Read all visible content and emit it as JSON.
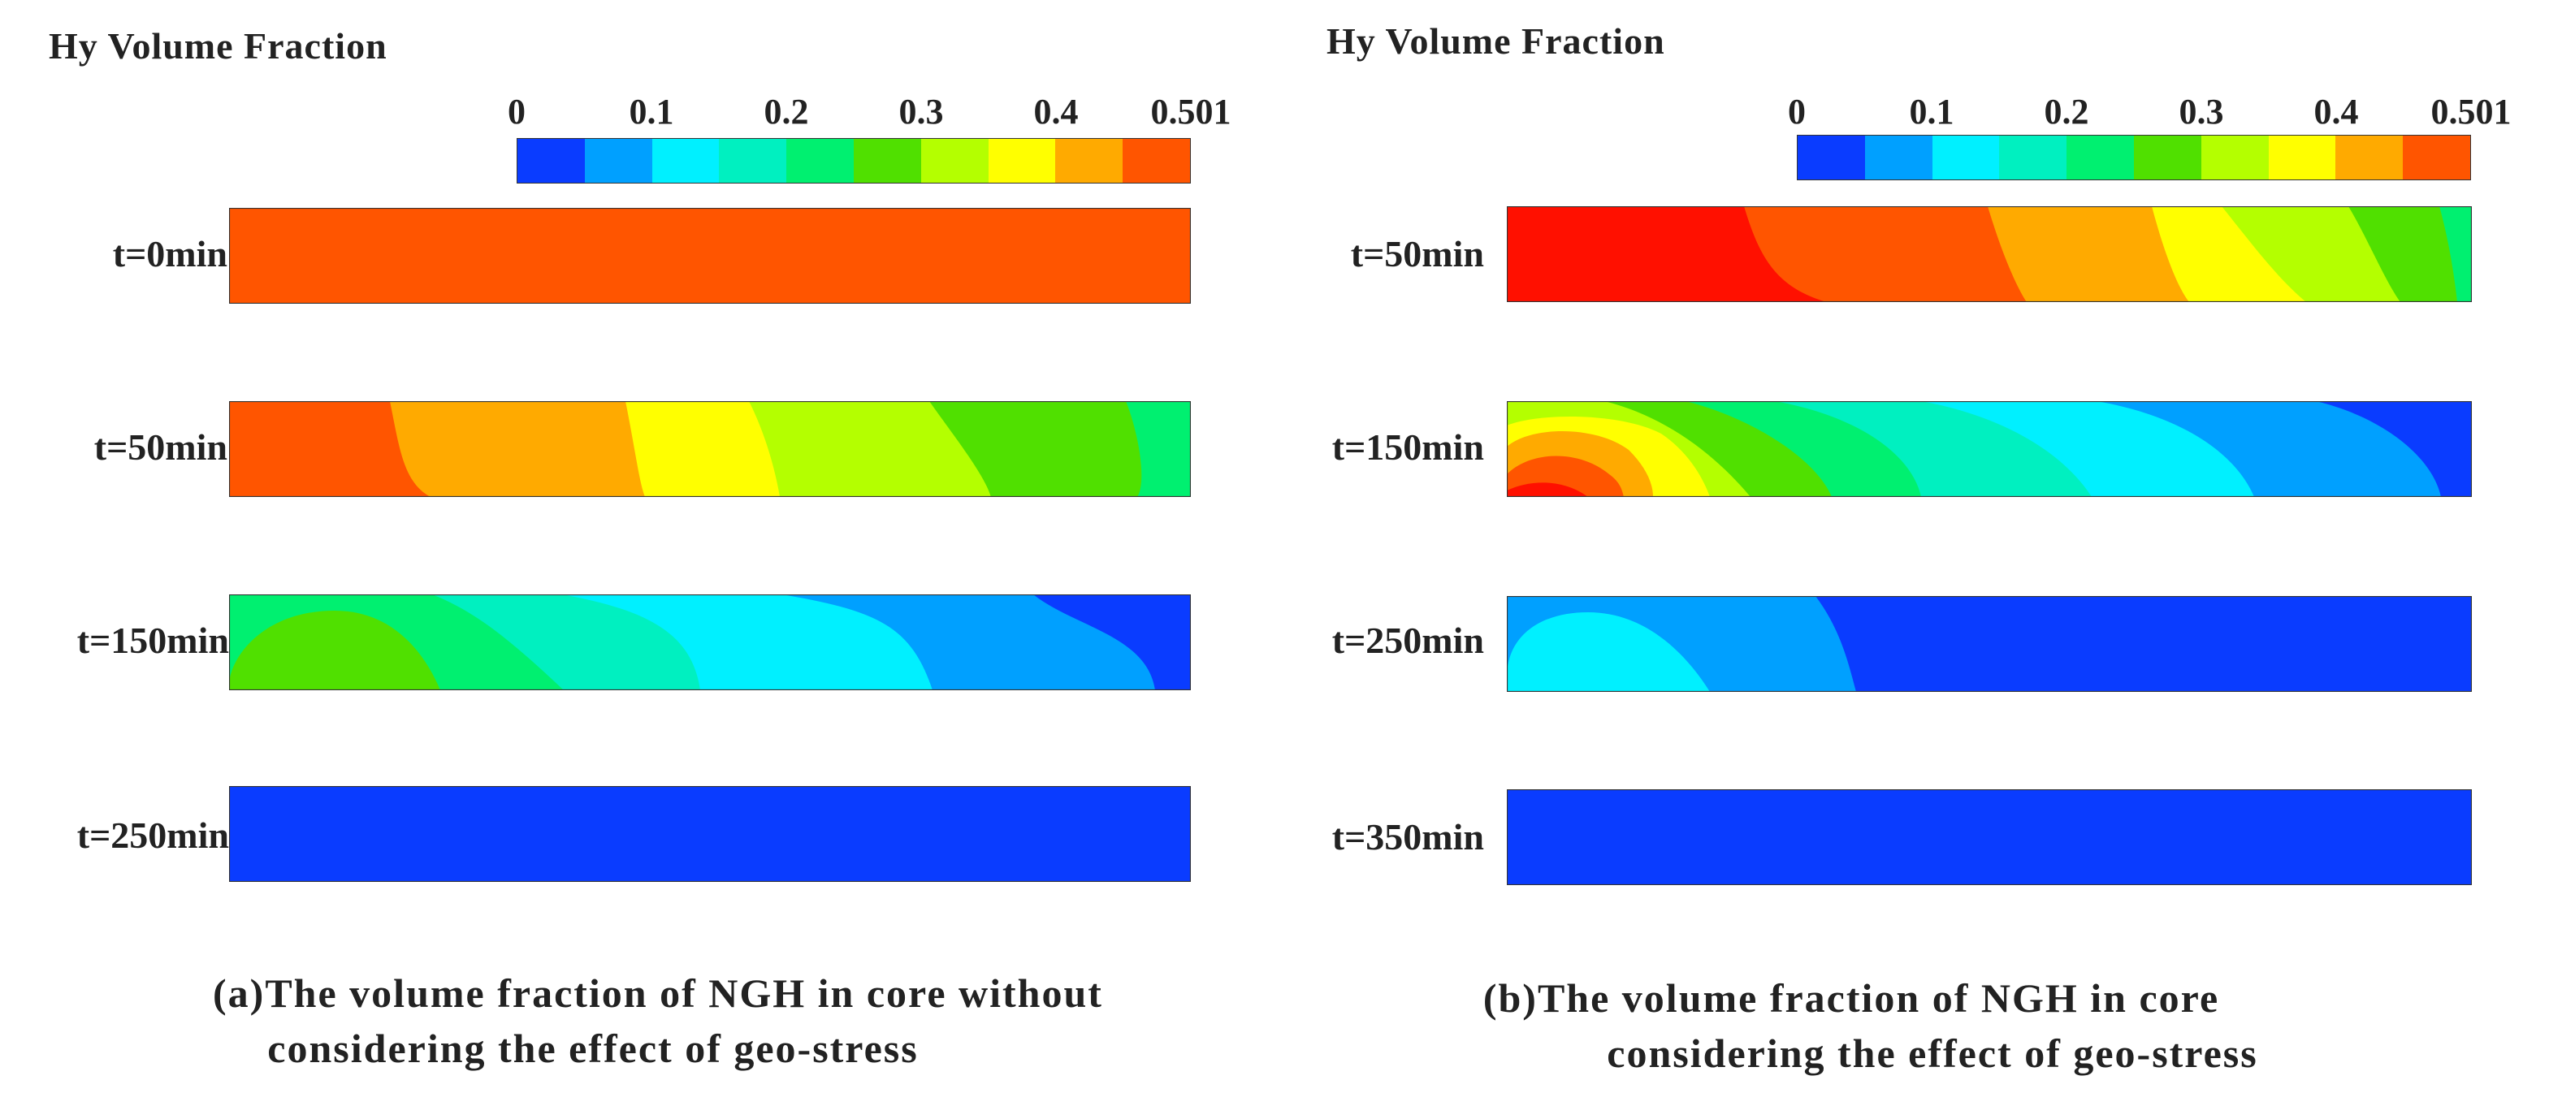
{
  "chart_data": [
    {
      "type": "heatmap",
      "panel": "a",
      "colorbar": {
        "title": "Hy Volume Fraction",
        "ticks": [
          "0",
          "0.1",
          "0.2",
          "0.3",
          "0.4",
          "0.501"
        ],
        "min": 0,
        "max": 0.501,
        "levels": 10,
        "colors": [
          "#0a3cff",
          "#00a0ff",
          "#00f0ff",
          "#00f0c0",
          "#00f070",
          "#50e000",
          "#b4ff00",
          "#ffff00",
          "#ffaa00",
          "#ff5500"
        ]
      },
      "snapshots": [
        {
          "label": "t=0min",
          "time_min": 0,
          "uniform_level": 9
        },
        {
          "label": "t=50min",
          "time_min": 50,
          "left_to_right_levels": [
            9,
            8,
            7,
            6,
            5,
            4
          ]
        },
        {
          "label": "t=150min",
          "time_min": 150,
          "left_to_right_levels": [
            5,
            4,
            3,
            2,
            1,
            0
          ]
        },
        {
          "label": "t=250min",
          "time_min": 250,
          "uniform_level": 0
        }
      ],
      "caption": [
        "(a)The volume fraction of NGH in core without",
        "considering the effect of geo-stress"
      ]
    },
    {
      "type": "heatmap",
      "panel": "b",
      "colorbar": {
        "title": "Hy Volume Fraction",
        "ticks": [
          "0",
          "0.1",
          "0.2",
          "0.3",
          "0.4",
          "0.501"
        ],
        "min": 0,
        "max": 0.501,
        "levels": 10,
        "colors": [
          "#0a3cff",
          "#00a0ff",
          "#00f0ff",
          "#00f0c0",
          "#00f070",
          "#50e000",
          "#b4ff00",
          "#ffff00",
          "#ffaa00",
          "#ff5500"
        ],
        "peak_color": "#ff1000"
      },
      "snapshots": [
        {
          "label": "t=50min",
          "time_min": 50,
          "left_to_right_levels": [
            10,
            9,
            8,
            7,
            6,
            5,
            4
          ]
        },
        {
          "label": "t=150min",
          "time_min": 150,
          "left_to_right_levels": [
            10,
            9,
            8,
            7,
            6,
            5,
            4,
            3,
            2,
            1,
            0
          ]
        },
        {
          "label": "t=250min",
          "time_min": 250,
          "left_to_right_levels": [
            2,
            1,
            0
          ]
        },
        {
          "label": "t=350min",
          "time_min": 350,
          "uniform_level": 0
        }
      ],
      "caption": [
        "(b)The volume fraction of NGH in core",
        "considering the effect of geo-stress"
      ]
    }
  ]
}
